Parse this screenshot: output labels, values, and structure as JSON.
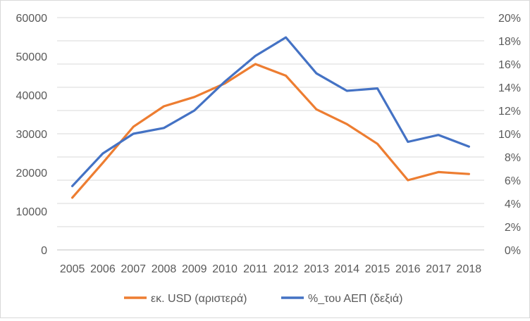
{
  "chart_data": {
    "type": "line",
    "x": [
      "2005",
      "2006",
      "2007",
      "2008",
      "2009",
      "2010",
      "2011",
      "2012",
      "2013",
      "2014",
      "2015",
      "2016",
      "2017",
      "2018"
    ],
    "series": [
      {
        "name": "εκ. USD (αριστερά)",
        "axis": "left",
        "color": "#ED7D31",
        "values": [
          13500,
          22500,
          31800,
          37100,
          39500,
          43000,
          48000,
          45000,
          36300,
          32500,
          27400,
          18000,
          20100,
          19600
        ]
      },
      {
        "name": "%_του ΑΕΠ (δεξιά)",
        "axis": "right",
        "color": "#4472C4",
        "values": [
          5.5,
          8.3,
          10.0,
          10.5,
          12.0,
          14.5,
          16.7,
          18.3,
          15.2,
          13.7,
          13.9,
          9.3,
          9.9,
          8.9
        ]
      }
    ],
    "yleft": {
      "ylim": [
        0,
        60000
      ],
      "ticks": [
        "0",
        "10000",
        "20000",
        "30000",
        "40000",
        "50000",
        "60000"
      ]
    },
    "yright": {
      "ylim": [
        0,
        20
      ],
      "ticks": [
        "0%",
        "2%",
        "4%",
        "6%",
        "8%",
        "10%",
        "12%",
        "14%",
        "16%",
        "18%",
        "20%"
      ]
    },
    "grid": true,
    "legend": "bottom",
    "gridColor": "#d9d9d9",
    "axisColor": "#bfbfbf"
  }
}
